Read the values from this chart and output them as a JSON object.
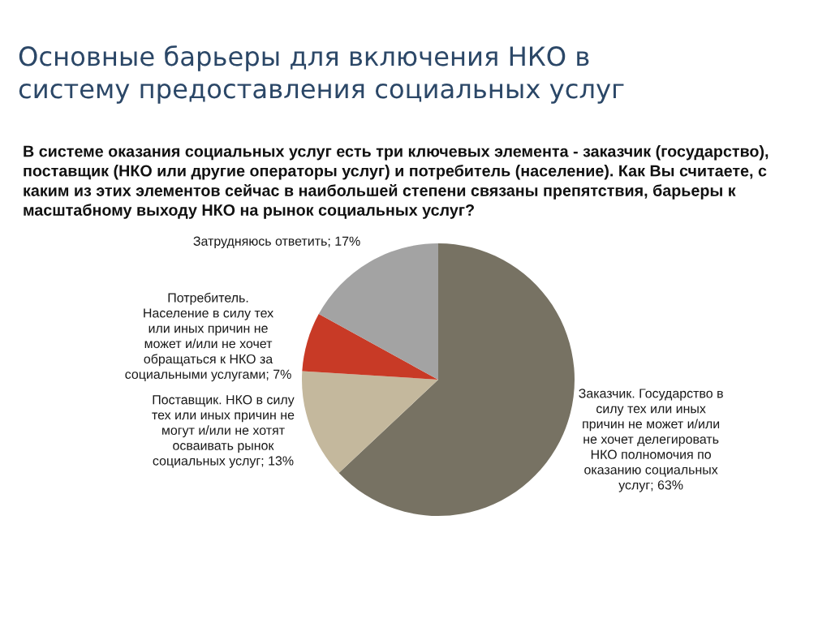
{
  "chart_data": {
    "type": "pie",
    "title": "Основные барьеры для включения НКО в\nсистему предоставления социальных услуг",
    "subtitle": "В системе оказания социальных услуг есть три ключевых элемента - заказчик (государство),\nпоставщик (НКО или другие операторы услуг) и потребитель (население). Как Вы считаете, с\nкаким из этих элементов сейчас в наибольшей степени связаны препятствия, барьеры к\nмасштабному выходу НКО на рынок социальных услуг?",
    "categories": [
      "Заказчик. Государство в\nсилу тех или иных\nпричин не может и/или\nне хочет делегировать\nНКО полномочия по\nоказанию социальных\nуслуг",
      "Поставщик. НКО в силу\nтех или иных причин не\nмогут и/или не хотят\nосваивать рынок\nсоциальных услуг",
      "Потребитель.\nНаселение в силу тех\nили иных причин не\nможет и/или не хочет\nобращаться к НКО за\nсоциальными услугами",
      "Затрудняюсь ответить"
    ],
    "values": [
      63,
      13,
      7,
      17
    ],
    "value_labels": [
      "63%",
      "13%",
      "7%",
      "17%"
    ],
    "colors": [
      "#777263",
      "#c4b89d",
      "#c83a26",
      "#a3a3a3"
    ]
  }
}
